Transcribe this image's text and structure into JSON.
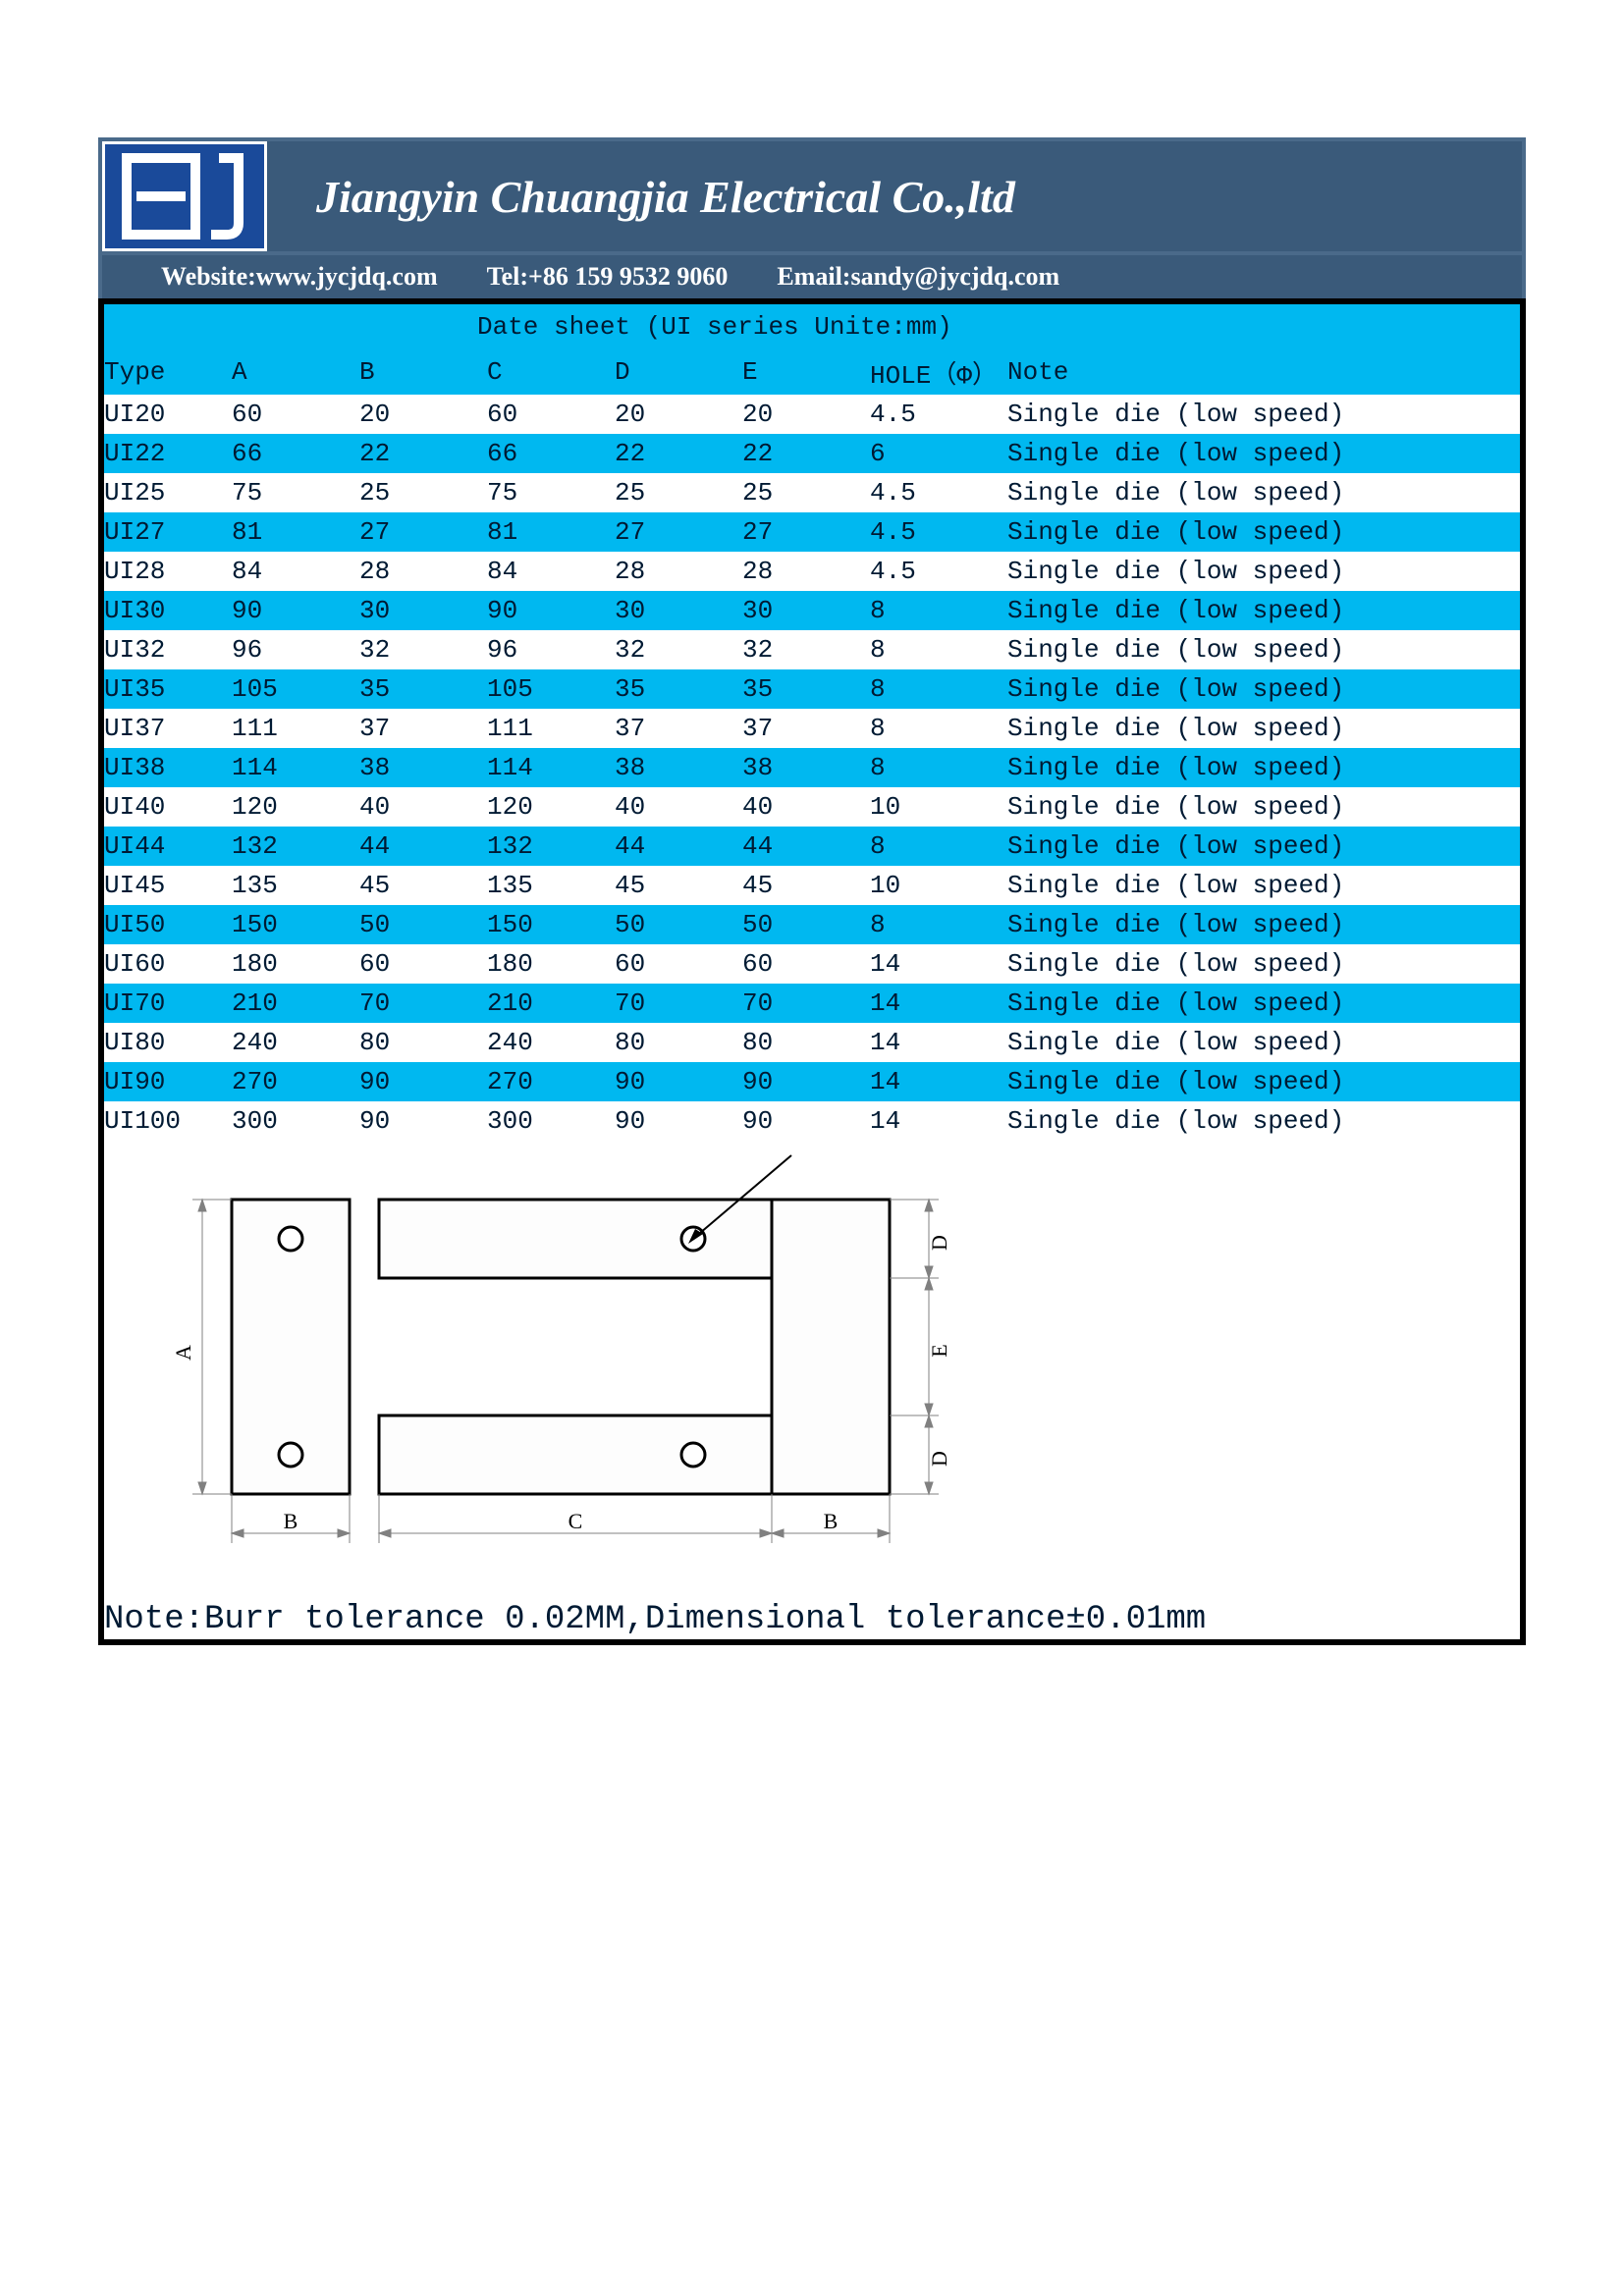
{
  "header": {
    "company_name": "Jiangyin Chuangjia Electrical Co.,ltd",
    "website_label": "Website:www.jycjdq.com",
    "tel_label": "Tel:+86 159 9532 9060",
    "email_label": "Email:sandy@jycjdq.com"
  },
  "colors": {
    "banner_bg": "#3a5a7a",
    "banner_border": "#4a6a8a",
    "logo_bg": "#1a4a9a",
    "stripe": "#00b8f0",
    "table_border": "#000000",
    "text_dark": "#001a33"
  },
  "table": {
    "title": "Date sheet    (UI series Unite:mm)",
    "columns": {
      "type": "Type",
      "a": "A",
      "b": "B",
      "c": "C",
      "d": "D",
      "e": "E",
      "hole": "HOLE（Φ）",
      "note": "Note"
    },
    "rows": [
      {
        "type": "UI20",
        "a": "60",
        "b": "20",
        "c": "60",
        "d": "20",
        "e": "20",
        "hole": "4.5",
        "note": "Single die (low speed)"
      },
      {
        "type": "UI22",
        "a": "66",
        "b": "22",
        "c": "66",
        "d": "22",
        "e": "22",
        "hole": "6",
        "note": "Single die (low speed)"
      },
      {
        "type": "UI25",
        "a": "75",
        "b": "25",
        "c": "75",
        "d": "25",
        "e": "25",
        "hole": "4.5",
        "note": "Single die (low speed)"
      },
      {
        "type": "UI27",
        "a": "81",
        "b": "27",
        "c": "81",
        "d": "27",
        "e": "27",
        "hole": "4.5",
        "note": "Single die (low speed)"
      },
      {
        "type": "UI28",
        "a": "84",
        "b": "28",
        "c": "84",
        "d": "28",
        "e": "28",
        "hole": "4.5",
        "note": "Single die (low speed)"
      },
      {
        "type": "UI30",
        "a": "90",
        "b": "30",
        "c": "90",
        "d": "30",
        "e": "30",
        "hole": "8",
        "note": "Single die (low speed)"
      },
      {
        "type": "UI32",
        "a": "96",
        "b": "32",
        "c": "96",
        "d": "32",
        "e": "32",
        "hole": "8",
        "note": "Single die (low speed)"
      },
      {
        "type": "UI35",
        "a": "105",
        "b": "35",
        "c": "105",
        "d": "35",
        "e": "35",
        "hole": "8",
        "note": "Single die (low speed)"
      },
      {
        "type": "UI37",
        "a": "111",
        "b": "37",
        "c": "111",
        "d": "37",
        "e": "37",
        "hole": "8",
        "note": "Single die (low speed)"
      },
      {
        "type": "UI38",
        "a": "114",
        "b": "38",
        "c": "114",
        "d": "38",
        "e": "38",
        "hole": "8",
        "note": "Single die (low speed)"
      },
      {
        "type": "UI40",
        "a": "120",
        "b": "40",
        "c": "120",
        "d": "40",
        "e": "40",
        "hole": "10",
        "note": "Single die (low speed)"
      },
      {
        "type": "UI44",
        "a": "132",
        "b": "44",
        "c": "132",
        "d": "44",
        "e": "44",
        "hole": "8",
        "note": "Single die (low speed)"
      },
      {
        "type": "UI45",
        "a": "135",
        "b": "45",
        "c": "135",
        "d": "45",
        "e": "45",
        "hole": "10",
        "note": "Single die (low speed)"
      },
      {
        "type": "UI50",
        "a": "150",
        "b": "50",
        "c": "150",
        "d": "50",
        "e": "50",
        "hole": "8",
        "note": "Single die (low speed)"
      },
      {
        "type": "UI60",
        "a": "180",
        "b": "60",
        "c": "180",
        "d": "60",
        "e": "60",
        "hole": "14",
        "note": "Single die (low speed)"
      },
      {
        "type": "UI70",
        "a": "210",
        "b": "70",
        "c": "210",
        "d": "70",
        "e": "70",
        "hole": "14",
        "note": "Single die (low speed)"
      },
      {
        "type": "UI80",
        "a": "240",
        "b": "80",
        "c": "240",
        "d": "80",
        "e": "80",
        "hole": "14",
        "note": "Single die (low speed)"
      },
      {
        "type": "UI90",
        "a": "270",
        "b": "90",
        "c": "270",
        "d": "90",
        "e": "90",
        "hole": "14",
        "note": "Single die (low speed)"
      },
      {
        "type": "UI100",
        "a": "300",
        "b": "90",
        "c": "300",
        "d": "90",
        "e": "90",
        "hole": "14",
        "note": "Single die (low speed)"
      }
    ],
    "footer_note": "Note:Burr tolerance 0.02MM,Dimensional tolerance±0.01mm"
  },
  "diagram": {
    "labels": {
      "A": "A",
      "B": "B",
      "C": "C",
      "D": "D",
      "E": "E"
    },
    "stroke": "#000000",
    "dim_stroke": "#808080"
  }
}
